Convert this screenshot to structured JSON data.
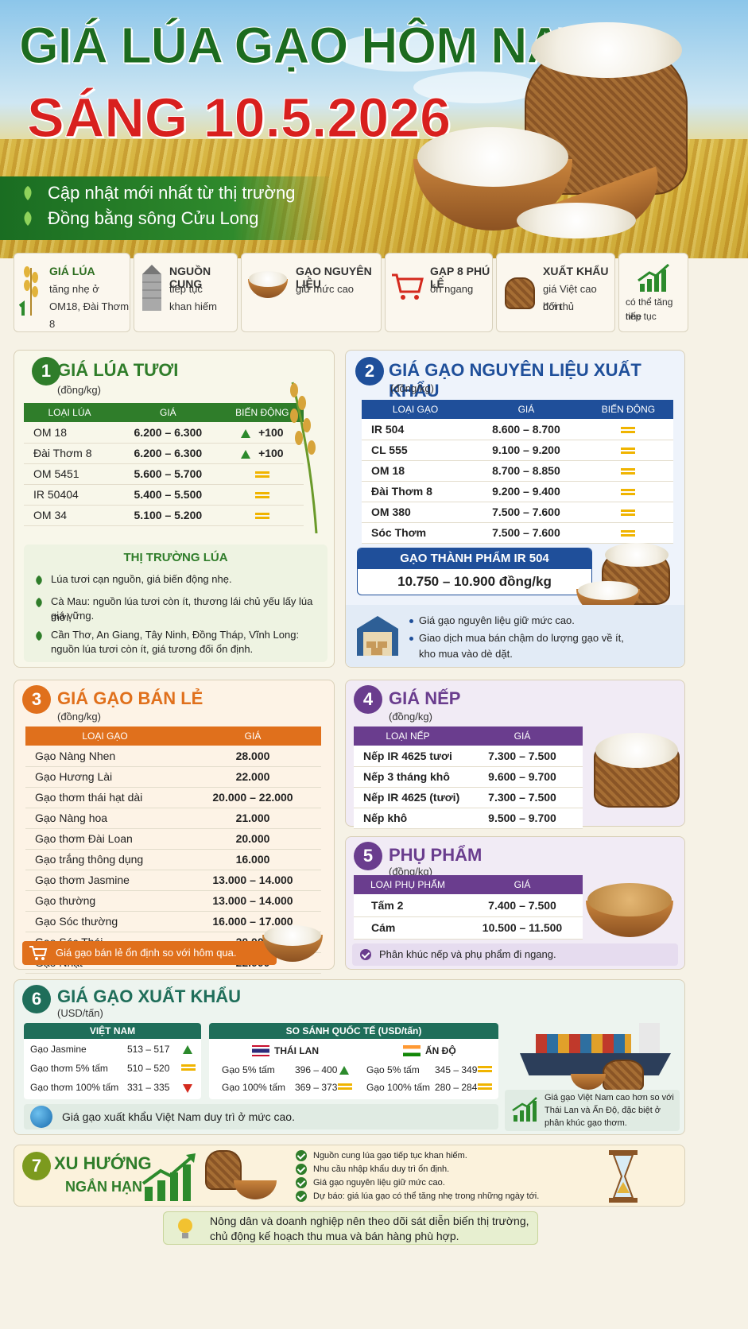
{
  "hero": {
    "title": "GIÁ LÚA GẠO HÔM NAY",
    "date": "SÁNG 10.5.2026",
    "line1": "Cập nhật mới nhất từ thị trường",
    "line2": "Đồng bằng sông Cửu Long"
  },
  "summary": [
    {
      "title": "GIÁ LÚA",
      "desc1": "tăng nhẹ ở",
      "desc2": "OM18, Đài Thơm 8"
    },
    {
      "title": "NGUỒN CUNG",
      "desc1": "tiếp tục",
      "desc2": "khan hiếm"
    },
    {
      "title": "GẠO NGUYÊN LIỆU",
      "desc1": "giữ mức cao",
      "desc2": ""
    },
    {
      "title": "GẠP 8 PHÚ LÊ",
      "desc1": "ổn ngang",
      "desc2": ""
    },
    {
      "title": "XUẤT KHẨU",
      "desc1": "giá Việt cao hơn",
      "desc2": "đối thủ"
    },
    {
      "title": "",
      "desc1": "có thể tăng nhẹ",
      "desc2": "tiếp tục"
    }
  ],
  "s1": {
    "num": "1",
    "title": "GIÁ LÚA TƯƠI",
    "unit": "(đồng/kg)",
    "headers": [
      "LOẠI LÚA",
      "GIÁ",
      "BIẾN ĐỘNG"
    ],
    "rows": [
      {
        "name": "OM 18",
        "price": "6.200 – 6.300",
        "chg": "+100",
        "dir": "up"
      },
      {
        "name": "Đài Thơm 8",
        "price": "6.200 – 6.300",
        "chg": "+100",
        "dir": "up"
      },
      {
        "name": "OM 5451",
        "price": "5.600 – 5.700",
        "chg": "",
        "dir": "eq"
      },
      {
        "name": "IR 50404",
        "price": "5.400 – 5.500",
        "chg": "",
        "dir": "eq"
      },
      {
        "name": "OM 34",
        "price": "5.100 – 5.200",
        "chg": "",
        "dir": "eq"
      }
    ],
    "market_title": "THỊ TRƯỜNG LÚA",
    "m1": "Lúa tươi cạn nguồn, giá biến động nhẹ.",
    "m2a": "Cà Mau: nguồn lúa tươi còn ít, thương lái chủ yếu lấy lúa mới,",
    "m2b": "giá vững.",
    "m3a": "Cần Thơ, An Giang, Tây Ninh, Đồng Tháp, Vĩnh Long:",
    "m3b": "nguồn lúa tươi còn ít, giá tương đối ổn định."
  },
  "s2": {
    "num": "2",
    "title": "GIÁ GẠO NGUYÊN LIỆU XUẤT KHẨU",
    "unit": "(đồng/kg)",
    "headers": [
      "LOẠI GẠO",
      "GIÁ",
      "BIẾN ĐỘNG"
    ],
    "rows": [
      {
        "name": "IR 504",
        "price": "8.600 – 8.700"
      },
      {
        "name": "CL 555",
        "price": "9.100 – 9.200"
      },
      {
        "name": "OM 18",
        "price": "8.700 – 8.850"
      },
      {
        "name": "Đài Thơm 8",
        "price": "9.200 – 9.400"
      },
      {
        "name": "OM 380",
        "price": "7.500 – 7.600"
      },
      {
        "name": "Sóc Thơm",
        "price": "7.500 – 7.600"
      }
    ],
    "finished_title": "GẠO THÀNH PHẨM IR 504",
    "finished_price": "10.750 – 10.900 đồng/kg",
    "n1": "Giá gạo nguyên liệu giữ mức cao.",
    "n2a": "Giao dịch mua bán chậm do lượng gạo về ít,",
    "n2b": "kho mua vào dè dặt."
  },
  "s3": {
    "num": "3",
    "title": "GIÁ GẠO BÁN LẺ",
    "unit": "(đồng/kg)",
    "headers": [
      "LOẠI GẠO",
      "GIÁ"
    ],
    "rows": [
      {
        "name": "Gạo Nàng Nhen",
        "price": "28.000"
      },
      {
        "name": "Gạo Hương Lài",
        "price": "22.000"
      },
      {
        "name": "Gạo thơm thái hạt dài",
        "price": "20.000 – 22.000"
      },
      {
        "name": "Gạo Nàng hoa",
        "price": "21.000"
      },
      {
        "name": "Gạo thơm Đài Loan",
        "price": "20.000"
      },
      {
        "name": "Gạo trắng thông dụng",
        "price": "16.000"
      },
      {
        "name": "Gạo thơm Jasmine",
        "price": "13.000 – 14.000"
      },
      {
        "name": "Gạo thường",
        "price": "13.000 – 14.000"
      },
      {
        "name": "Gạo Sóc thường",
        "price": "16.000 – 17.000"
      },
      {
        "name": "Gạo Sóc Thái",
        "price": "20.000"
      },
      {
        "name": "Gạo Nhật",
        "price": "22.000"
      }
    ],
    "note": "Giá gạo bán lẻ ổn định so với hôm qua."
  },
  "s4": {
    "num": "4",
    "title": "GIÁ NẾP",
    "unit": "(đồng/kg)",
    "headers": [
      "LOẠI NẾP",
      "GIÁ"
    ],
    "rows": [
      {
        "name": "Nếp IR 4625 tươi",
        "price": "7.300 – 7.500"
      },
      {
        "name": "Nếp 3 tháng khô",
        "price": "9.600 – 9.700"
      },
      {
        "name": "Nếp IR 4625 (tươi)",
        "price": "7.300 – 7.500"
      },
      {
        "name": "Nếp khô",
        "price": "9.500 – 9.700"
      }
    ]
  },
  "s5": {
    "num": "5",
    "title": "PHỤ PHẨM",
    "unit": "(đồng/kg)",
    "headers": [
      "LOẠI PHỤ PHẨM",
      "GIÁ"
    ],
    "rows": [
      {
        "name": "Tấm 2",
        "price": "7.400 – 7.500"
      },
      {
        "name": "Cám",
        "price": "10.500 – 11.500"
      }
    ],
    "note": "Phân khúc nếp và phụ phẩm đi ngang."
  },
  "s6": {
    "num": "6",
    "title": "GIÁ GẠO XUẤT KHẨU",
    "unit": "(USD/tấn)",
    "vn_header": "VIỆT NAM",
    "intl_header": "SO SÁNH QUỐC TẾ (USD/tấn)",
    "vn": [
      {
        "name": "Gạo Jasmine",
        "price": "513 – 517",
        "dir": "up"
      },
      {
        "name": "Gạo thơm 5% tấm",
        "price": "510 – 520",
        "dir": "eq"
      },
      {
        "name": "Gạo thơm 100% tấm",
        "price": "331 – 335",
        "dir": "dn"
      }
    ],
    "th_label": "THÁI LAN",
    "th": [
      {
        "name": "Gạo 5% tấm",
        "price": "396 – 400",
        "dir": "up"
      },
      {
        "name": "Gạo 100% tấm",
        "price": "369 – 373",
        "dir": "eq"
      }
    ],
    "in_label": "ẤN ĐỘ",
    "in": [
      {
        "name": "Gạo 5% tấm",
        "price": "345 – 349",
        "dir": "eq"
      },
      {
        "name": "Gạo 100% tấm",
        "price": "280 – 284",
        "dir": "eq"
      }
    ],
    "note": "Giá gạo xuất khẩu Việt Nam duy trì ở mức cao.",
    "side1": "Giá gạo Việt Nam cao hơn so với",
    "side2": "Thái Lan và Ấn Độ, đặc biệt ở",
    "side3": "phân khúc gạo thơm."
  },
  "s7": {
    "num": "7",
    "title1": "XU HƯỚNG",
    "title2": "NGẮN HẠN",
    "items": [
      "Nguồn cung lúa gạo tiếp tục khan hiếm.",
      "Nhu cầu nhập khẩu duy trì ổn định.",
      "Giá gạo nguyên liệu giữ mức cao.",
      "Dự báo: giá lúa gạo có thể tăng nhẹ trong những ngày tới."
    ],
    "advice1": "Nông dân và doanh nghiệp nên theo dõi sát diễn biến thị trường,",
    "advice2": "chủ động kế hoạch thu mua và bán hàng phù hợp."
  },
  "colors": {
    "green": "#2f7d2a",
    "blue": "#1f4f9a",
    "orange": "#e0701c",
    "purple": "#6a3d8e",
    "teal": "#1f6e5a"
  }
}
